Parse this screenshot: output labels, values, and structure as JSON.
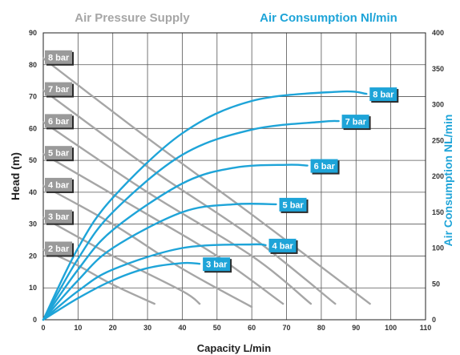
{
  "chart_data": {
    "type": "line",
    "header_left": "Air Pressure Supply",
    "header_right": "Air Consumption Nl/min",
    "xlabel": "Capacity L/min",
    "ylabel_left": "Head (m)",
    "ylabel_right": "Air Consumption NL/min",
    "xlim": [
      0,
      110
    ],
    "ylim_left": [
      0,
      90
    ],
    "ylim_right": [
      0,
      400
    ],
    "x_ticks": [
      0,
      10,
      20,
      30,
      40,
      50,
      60,
      70,
      80,
      90,
      100,
      110
    ],
    "y_left_ticks": [
      0,
      10,
      20,
      30,
      40,
      50,
      60,
      70,
      80,
      90
    ],
    "y_right_ticks": [
      0,
      50,
      100,
      150,
      200,
      250,
      300,
      350,
      400
    ],
    "grid": true,
    "colors": {
      "pressure": "#a6a6a6",
      "consumption": "#1ea4d8",
      "pressure_tag": "#9a9a9a",
      "consumption_tag": "#1ea4d8",
      "header_left": "#a6a6a6",
      "header_right": "#1ea4d8"
    },
    "pressure_series": [
      {
        "name": "8 bar",
        "points": [
          [
            0,
            82
          ],
          [
            30,
            57
          ],
          [
            60,
            33
          ],
          [
            94,
            5
          ]
        ]
      },
      {
        "name": "7 bar",
        "points": [
          [
            0,
            72
          ],
          [
            30,
            48
          ],
          [
            60,
            26
          ],
          [
            84,
            5
          ]
        ]
      },
      {
        "name": "6 bar",
        "points": [
          [
            0,
            62
          ],
          [
            30,
            40
          ],
          [
            60,
            20
          ],
          [
            77,
            5
          ]
        ]
      },
      {
        "name": "5 bar",
        "points": [
          [
            0,
            52
          ],
          [
            30,
            33
          ],
          [
            50,
            20
          ],
          [
            69,
            5
          ]
        ]
      },
      {
        "name": "4 bar",
        "points": [
          [
            0,
            42
          ],
          [
            20,
            30
          ],
          [
            40,
            16
          ],
          [
            60,
            4
          ]
        ]
      },
      {
        "name": "3 bar",
        "points": [
          [
            0,
            32
          ],
          [
            20,
            20
          ],
          [
            40,
            9
          ],
          [
            45,
            5
          ]
        ]
      },
      {
        "name": "2 bar",
        "points": [
          [
            0,
            22
          ],
          [
            10,
            17
          ],
          [
            20,
            11
          ],
          [
            32,
            5
          ]
        ]
      }
    ],
    "consumption_series": [
      {
        "name": "8 bar",
        "points": [
          [
            0,
            0
          ],
          [
            10,
            100
          ],
          [
            20,
            170
          ],
          [
            40,
            260
          ],
          [
            60,
            305
          ],
          [
            85,
            318
          ],
          [
            93,
            315
          ]
        ]
      },
      {
        "name": "7 bar",
        "points": [
          [
            0,
            0
          ],
          [
            10,
            85
          ],
          [
            20,
            150
          ],
          [
            40,
            230
          ],
          [
            60,
            265
          ],
          [
            80,
            276
          ],
          [
            85,
            277
          ]
        ]
      },
      {
        "name": "6 bar",
        "points": [
          [
            0,
            0
          ],
          [
            10,
            70
          ],
          [
            20,
            125
          ],
          [
            40,
            190
          ],
          [
            55,
            212
          ],
          [
            70,
            216
          ],
          [
            76,
            215
          ]
        ]
      },
      {
        "name": "5 bar",
        "points": [
          [
            0,
            0
          ],
          [
            10,
            55
          ],
          [
            20,
            100
          ],
          [
            40,
            150
          ],
          [
            55,
            161
          ],
          [
            67,
            161
          ]
        ]
      },
      {
        "name": "4 bar",
        "points": [
          [
            0,
            0
          ],
          [
            10,
            40
          ],
          [
            20,
            70
          ],
          [
            40,
            100
          ],
          [
            60,
            105
          ],
          [
            64,
            104
          ]
        ]
      },
      {
        "name": "3 bar",
        "points": [
          [
            0,
            0
          ],
          [
            10,
            30
          ],
          [
            20,
            55
          ],
          [
            30,
            72
          ],
          [
            40,
            79
          ],
          [
            45,
            78
          ]
        ]
      }
    ]
  }
}
